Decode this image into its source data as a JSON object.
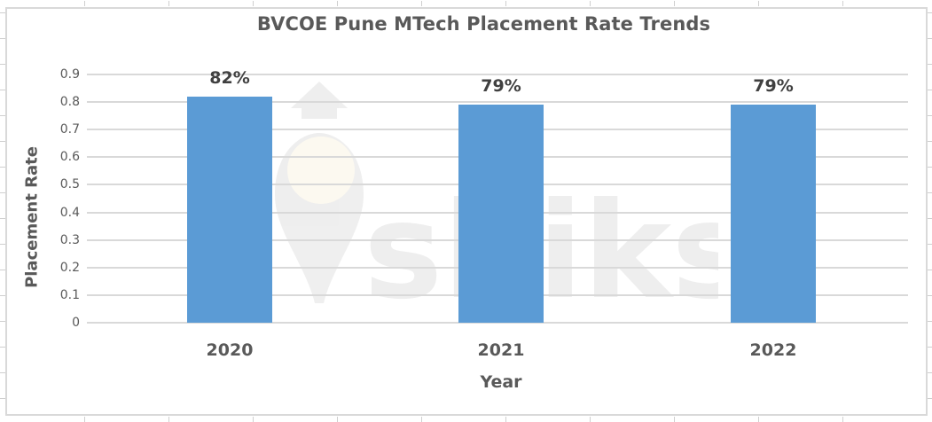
{
  "chart_data": {
    "type": "bar",
    "title": "BVCOE Pune MTech Placement Rate Trends",
    "xlabel": "Year",
    "ylabel": "Placement Rate",
    "categories": [
      "2020",
      "2021",
      "2022"
    ],
    "values": [
      0.82,
      0.79,
      0.79
    ],
    "data_labels": [
      "82%",
      "79%",
      "79%"
    ],
    "ylim": [
      0,
      0.9
    ],
    "yticks": [
      "0",
      "0.1",
      "0.2",
      "0.3",
      "0.4",
      "0.5",
      "0.6",
      "0.7",
      "0.8",
      "0.9"
    ],
    "grid": true,
    "legend": null,
    "bar_color": "#5b9bd5"
  },
  "watermark": {
    "text": "shiksha"
  }
}
